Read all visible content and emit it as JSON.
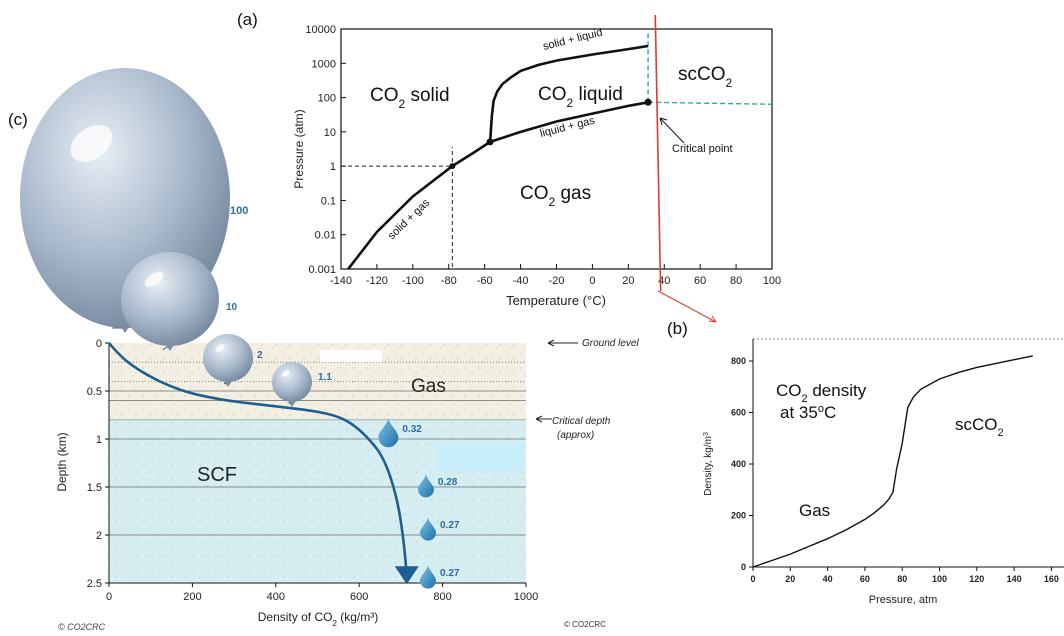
{
  "panel_labels": {
    "a": "(a)",
    "b": "(b)",
    "c": "(c)"
  },
  "chart_data": [
    {
      "id": "a",
      "type": "line",
      "xlabel": "Temperature (°C)",
      "ylabel": "Pressure (atm)",
      "xlim": [
        -140,
        100
      ],
      "ylim": [
        0.001,
        10000
      ],
      "yscale": "log",
      "x_ticks": [
        "-140",
        "-120",
        "-100",
        "-80",
        "-60",
        "-40",
        "-20",
        "0",
        "20",
        "40",
        "60",
        "80",
        "100"
      ],
      "y_ticks": [
        "0.001",
        "0.01",
        "0.1",
        "1",
        "10",
        "100",
        "1000",
        "10000"
      ],
      "phase_labels": {
        "solid_base": "CO",
        "solid_rest": " solid",
        "liquid_base": "CO",
        "liquid_rest": " liquid",
        "gas_base": "CO",
        "gas_rest": " gas",
        "sc_base": "scCO",
        "sub": "2"
      },
      "curve_labels": {
        "solid_liquid": "solid + liquid",
        "liquid_gas": "liquid + gas",
        "solid_gas": "solid + gas",
        "critical_point": "Critical point"
      },
      "sublimation_curve": {
        "x": [
          -136,
          -120,
          -100,
          -78,
          -66,
          -57
        ],
        "y": [
          0.001,
          0.012,
          0.13,
          1.0,
          2.5,
          5.1
        ]
      },
      "vaporization_curve": {
        "x": [
          -57,
          -40,
          -20,
          0,
          20,
          31
        ],
        "y": [
          5.1,
          10,
          20,
          34,
          57,
          73
        ]
      },
      "melting_curve": {
        "x": [
          -57,
          -56,
          -55,
          -53,
          -50,
          -45,
          -40,
          -30,
          -20,
          0,
          20,
          31
        ],
        "y": [
          5.1,
          30,
          80,
          150,
          250,
          400,
          600,
          900,
          1200,
          1800,
          2600,
          3200
        ]
      },
      "triple_point": {
        "x": -57,
        "y": 5.1
      },
      "critical_point": {
        "x": 31,
        "y": 73
      },
      "reference_point": {
        "x": -78,
        "y": 1
      },
      "red_line": {
        "x": [
          35,
          38
        ],
        "y": [
          30000,
          0.0005
        ]
      }
    },
    {
      "id": "b",
      "type": "line",
      "xlabel": "Pressure, atm",
      "ylabel_base": "Density, kg/m",
      "ylabel_sup": "3",
      "xlim": [
        0,
        160
      ],
      "ylim": [
        0,
        900
      ],
      "x_ticks": [
        "0",
        "20",
        "40",
        "60",
        "80",
        "100",
        "120",
        "140",
        "160"
      ],
      "y_ticks": [
        "0",
        "200",
        "400",
        "600",
        "800"
      ],
      "annotation_line1_base": "CO",
      "annotation_line1_sub": "2",
      "annotation_line1_rest": " density",
      "annotation_line2_base": "at 35",
      "annotation_line2_sup": "o",
      "annotation_line2_rest": "C",
      "region_gas": "Gas",
      "region_sc_base": "scCO",
      "region_sc_sub": "2",
      "series": [
        {
          "x": [
            0,
            10,
            20,
            30,
            40,
            50,
            60,
            65,
            70,
            73,
            75,
            77,
            80,
            83,
            86,
            90,
            100,
            110,
            120,
            130,
            140,
            150
          ],
          "y": [
            0,
            25,
            50,
            80,
            110,
            145,
            185,
            210,
            240,
            265,
            290,
            380,
            480,
            620,
            660,
            690,
            730,
            755,
            775,
            790,
            805,
            820
          ]
        }
      ]
    },
    {
      "id": "c",
      "type": "line",
      "xlabel_base": "Density of CO",
      "xlabel_sub": "2",
      "xlabel_rest": " (kg/m³)",
      "ylabel": "Depth (km)",
      "xlim": [
        0,
        1000
      ],
      "ylim": [
        0,
        2.5
      ],
      "x_ticks": [
        "0",
        "200",
        "400",
        "600",
        "800",
        "1000"
      ],
      "y_ticks": [
        "0",
        "0.5",
        "1",
        "1.5",
        "2",
        "2.5"
      ],
      "critical_depth_km": 0.8,
      "ground_label": "Ground level",
      "critical_label_line1": "Critical depth",
      "critical_label_line2": "(approx)",
      "region_gas": "Gas",
      "region_scf": "SCF",
      "series": [
        {
          "x": [
            0,
            20,
            50,
            90,
            140,
            200,
            280,
            380,
            480,
            540,
            580,
            620,
            660,
            690,
            705,
            712,
            714
          ],
          "y": [
            0,
            0.1,
            0.22,
            0.33,
            0.44,
            0.53,
            0.6,
            0.65,
            0.7,
            0.75,
            0.83,
            0.98,
            1.2,
            1.6,
            2.0,
            2.3,
            2.45
          ]
        }
      ],
      "balloons": [
        {
          "value": "100"
        },
        {
          "value": "10"
        },
        {
          "value": "2"
        },
        {
          "value": "1.1"
        }
      ],
      "droplets": [
        {
          "value": "0.32",
          "x": 670,
          "y": 0.95
        },
        {
          "value": "0.28",
          "x": 760,
          "y": 1.5
        },
        {
          "value": "0.27",
          "x": 765,
          "y": 1.95
        },
        {
          "value": "0.27",
          "x": 765,
          "y": 2.45
        }
      ]
    }
  ],
  "credits": {
    "left": "© CO2CRC",
    "right": "© CO2CRC"
  },
  "colors": {
    "curve": "#111111",
    "dashed_cyan": "#2aa9b4",
    "red_line": "#e23b2e",
    "depth_curve": "#1e5f92",
    "gas_zone": "#f3efe2",
    "scf_zone": "#d6edf2",
    "value_label": "#2a6f9e"
  }
}
